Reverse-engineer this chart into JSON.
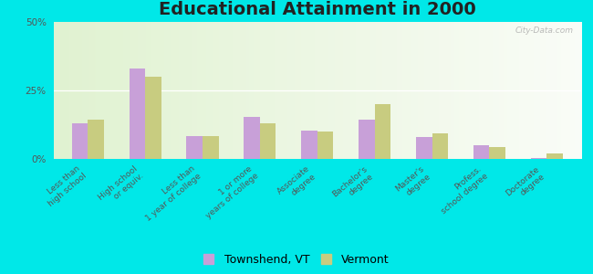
{
  "title": "Educational Attainment in 2000",
  "categories": [
    "Less than\nhigh school",
    "High school\nor equiv.",
    "Less than\n1 year of college",
    "1 or more\nyears of college",
    "Associate\ndegree",
    "Bachelor's\ndegree",
    "Master's\ndegree",
    "Profess.\nschool degree",
    "Doctorate\ndegree"
  ],
  "townshend": [
    13.0,
    33.0,
    8.5,
    15.5,
    10.5,
    14.5,
    8.0,
    5.0,
    0.5
  ],
  "vermont": [
    14.5,
    30.0,
    8.5,
    13.0,
    10.0,
    20.0,
    9.5,
    4.5,
    2.0
  ],
  "townshend_color": "#c8a0d8",
  "vermont_color": "#c8cc80",
  "ylim": [
    0,
    50
  ],
  "yticks": [
    0,
    25,
    50
  ],
  "ytick_labels": [
    "0%",
    "25%",
    "50%"
  ],
  "outer_background": "#00e8e8",
  "legend_townshend": "Townshend, VT",
  "legend_vermont": "Vermont",
  "bar_width": 0.28,
  "title_fontsize": 14,
  "tick_fontsize": 6.5,
  "legend_fontsize": 9
}
